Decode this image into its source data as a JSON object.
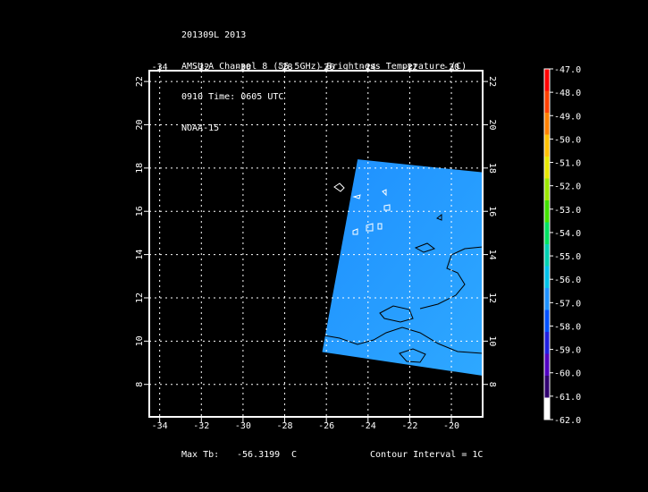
{
  "header": {
    "lines": [
      "201309L 2013",
      "AMSU-A Channel 8 (55.5GHz) Brightness Temperature (C)",
      "0910 Time: 0605 UTC",
      "NOAA-15"
    ]
  },
  "map": {
    "lon_range": [
      -34.5,
      -18.5
    ],
    "lat_range": [
      6.5,
      22.5
    ],
    "lon_ticks": [
      "-34",
      "-32",
      "-30",
      "-28",
      "-26",
      "-24",
      "-22",
      "-20"
    ],
    "lon_tick_values": [
      -34,
      -32,
      -30,
      -28,
      -26,
      -24,
      -22,
      -20
    ],
    "lat_ticks": [
      "8",
      "10",
      "12",
      "14",
      "16",
      "18",
      "20",
      "22"
    ],
    "lat_tick_values": [
      8,
      10,
      12,
      14,
      16,
      18,
      20,
      22
    ],
    "grid": true,
    "swath_corners": [
      [
        -24.5,
        18.4
      ],
      [
        -18.5,
        17.8
      ],
      [
        -18.5,
        8.4
      ],
      [
        -26.2,
        9.5
      ]
    ],
    "swath_color": "#1E90FF",
    "swath_color_2": "#2EA8FF"
  },
  "colorbar": {
    "labels": [
      "-47.0",
      "-48.0",
      "-49.0",
      "-50.0",
      "-51.0",
      "-52.0",
      "-53.0",
      "-54.0",
      "-55.0",
      "-56.0",
      "-57.0",
      "-58.0",
      "-59.0",
      "-60.0",
      "-61.0",
      "-62.0"
    ],
    "colors": [
      "#FF0000",
      "#FF4000",
      "#FF8000",
      "#FFBF00",
      "#E6E600",
      "#9AE600",
      "#40E000",
      "#00E060",
      "#00D0B0",
      "#00C0E8",
      "#1E90FF",
      "#0050FF",
      "#2020E0",
      "#5000C0",
      "#300070",
      "#FFFFFF"
    ]
  },
  "footer": {
    "max_tb_label": "Max Tb:",
    "max_tb_value": "-56.3199",
    "max_tb_unit": "C",
    "contour_interval": "Contour Interval = 1C"
  }
}
